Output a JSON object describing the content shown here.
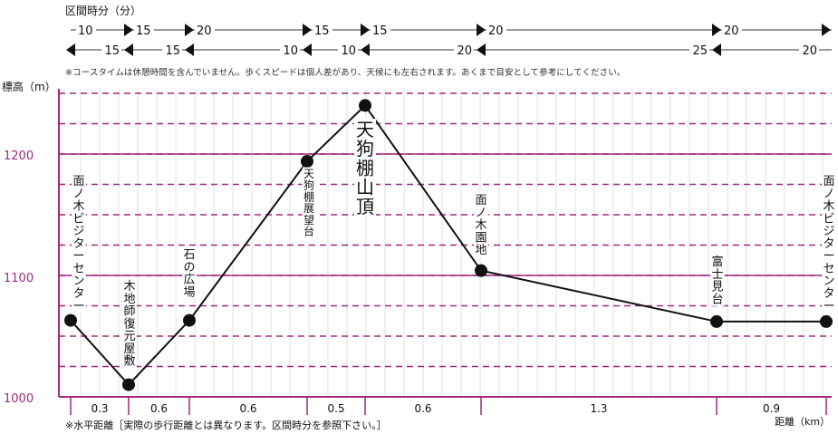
{
  "header": {
    "section_time_label": "区間時分（分）",
    "note": "※コースタイムは休憩時間を含んでいません。歩くスピードは個人差があり、天候にも左右されます。あくまで目安として参考にしてください。"
  },
  "time_rows": {
    "outbound": [
      "10",
      "15",
      "20",
      "15",
      "15",
      "20",
      "20"
    ],
    "return": [
      "15",
      "15",
      "10",
      "10",
      "20",
      "25",
      "20"
    ]
  },
  "colors": {
    "accent": "#a0287d",
    "dashed_grid": "#a0287d",
    "line": "#111111",
    "minor_grid": "#cccccc"
  },
  "chart_data": {
    "type": "line",
    "ylabel": "標高（m）",
    "xlabel": "距離（km）",
    "ylim": [
      1000,
      1250
    ],
    "yticks": [
      "1000",
      "1100",
      "1200"
    ],
    "footnote": "※水平距離［実際の歩行距離とは異なります。区間時分を参照下さい。］",
    "segment_distances": [
      "0.3",
      "0.6",
      "0.6",
      "0.5",
      "0.6",
      "1.3",
      "0.9"
    ],
    "points": [
      {
        "label": "面ノ木ビジターセンター",
        "x": 0.0,
        "y": 1063
      },
      {
        "label": "木地師復元屋敷",
        "x": 0.3,
        "y": 1010
      },
      {
        "label": "石の広場",
        "x": 0.9,
        "y": 1063
      },
      {
        "label": "天狗棚展望台",
        "x": 1.5,
        "y": 1194
      },
      {
        "label": "天狗棚山頂",
        "x": 2.0,
        "y": 1240
      },
      {
        "label": "面ノ木園地",
        "x": 2.6,
        "y": 1104
      },
      {
        "label": "富士見台",
        "x": 3.9,
        "y": 1062
      },
      {
        "label": "面ノ木ビジターセンター",
        "x": 4.8,
        "y": 1062
      }
    ]
  }
}
